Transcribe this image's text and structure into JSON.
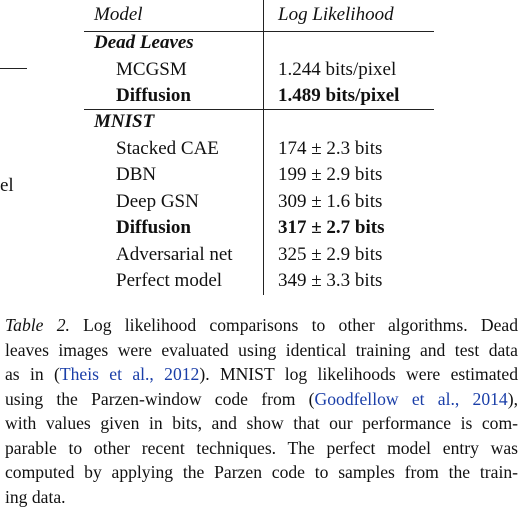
{
  "fragments": [
    "el"
  ],
  "table": {
    "header": [
      "Model",
      "Log Likelihood"
    ],
    "sections": [
      {
        "title": "Dead Leaves",
        "rows": [
          {
            "model": "MCGSM",
            "value": "1.244 bits/pixel",
            "bold": false
          },
          {
            "model": "Diffusion",
            "value": "1.489 bits/pixel",
            "bold": true
          }
        ]
      },
      {
        "title": "MNIST",
        "rows": [
          {
            "model": "Stacked CAE",
            "value": "174 ± 2.3 bits",
            "bold": false
          },
          {
            "model": "DBN",
            "value": "199 ± 2.9 bits",
            "bold": false
          },
          {
            "model": "Deep GSN",
            "value": "309 ± 1.6 bits",
            "bold": false
          },
          {
            "model": "Diffusion",
            "value": "317 ± 2.7 bits",
            "bold": true
          },
          {
            "model": "Adversarial net",
            "value": "325 ± 2.9 bits",
            "bold": false
          },
          {
            "model": "Perfect model",
            "value": "349 ± 3.3 bits",
            "bold": false
          }
        ]
      }
    ]
  },
  "caption": {
    "lines": [
      [
        {
          "text": "Table 2.",
          "italic": true
        },
        {
          "text": " Log likelihood comparisons to other algorithms. Dead"
        }
      ],
      [
        {
          "text": "leaves images were evaluated using identical training and test data"
        }
      ],
      [
        {
          "text": "as in ("
        },
        {
          "text": "Theis et al., 2012",
          "link": true
        },
        {
          "text": "). MNIST log likelihoods were estimated"
        }
      ],
      [
        {
          "text": "using the Parzen-window code from ("
        },
        {
          "text": "Goodfellow et al., 2014",
          "link": true
        },
        {
          "text": "),"
        }
      ],
      [
        {
          "text": "with values given in bits, and show that our performance is com-"
        }
      ],
      [
        {
          "text": "parable to other recent techniques. The perfect model entry was"
        }
      ],
      [
        {
          "text": "computed by applying the Parzen code to samples from the train-"
        }
      ],
      [
        {
          "text": "ing data."
        }
      ]
    ]
  }
}
